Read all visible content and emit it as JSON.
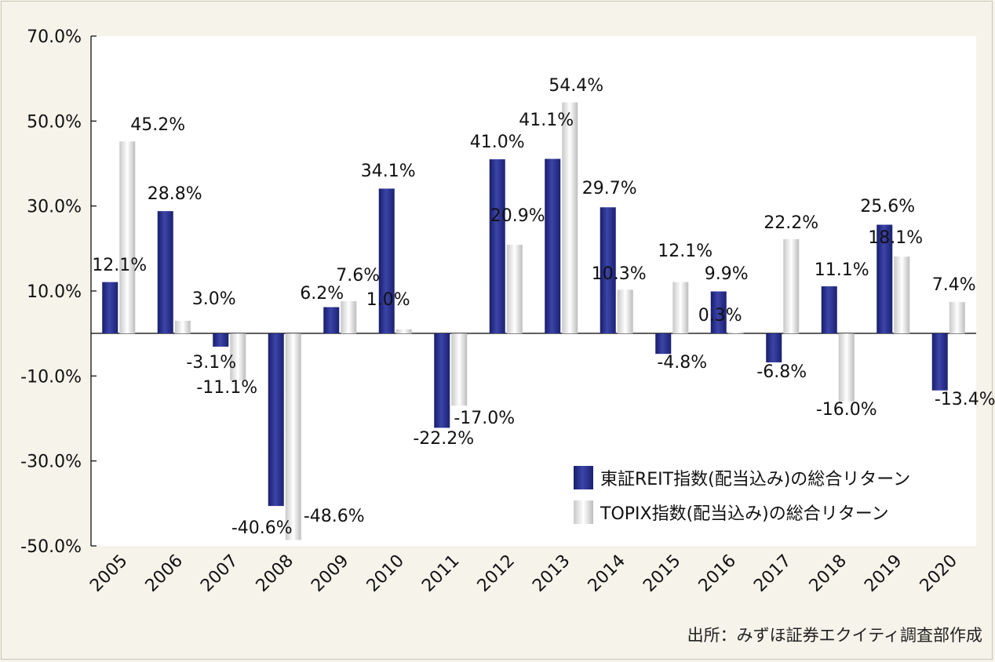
{
  "colors": {
    "background": "#f5f3ea",
    "plot_background": "#ffffff",
    "reit_bar": "#2e3592",
    "topix_bar": "#e4e4e4"
  },
  "chart_data": {
    "type": "bar",
    "title": "",
    "xlabel": "",
    "ylabel": "",
    "ylim": [
      -50.0,
      70.0
    ],
    "y_ticks": [
      70.0,
      50.0,
      30.0,
      10.0,
      -10.0,
      -30.0,
      -50.0
    ],
    "y_tick_labels": [
      "70.0%",
      "50.0%",
      "30.0%",
      "10.0%",
      "-10.0%",
      "-30.0%",
      "-50.0%"
    ],
    "categories": [
      "2005",
      "2006",
      "2007",
      "2008",
      "2009",
      "2010",
      "2011",
      "2012",
      "2013",
      "2014",
      "2015",
      "2016",
      "2017",
      "2018",
      "2019",
      "2020"
    ],
    "series": [
      {
        "name": "東証REIT指数(配当込み)の総合リターン",
        "values": [
          12.1,
          28.8,
          -3.1,
          -40.6,
          6.2,
          34.1,
          -22.2,
          41.0,
          41.1,
          29.7,
          -4.8,
          9.9,
          -6.8,
          11.1,
          25.6,
          -13.4
        ],
        "labels": [
          "12.1%",
          "28.8%",
          "-3.1%",
          "-40.6%",
          "6.2%",
          "34.1%",
          "-22.2%",
          "41.0%",
          "41.1%",
          "29.7%",
          "-4.8%",
          "9.9%",
          "-6.8%",
          "11.1%",
          "25.6%",
          "-13.4%"
        ]
      },
      {
        "name": "TOPIX指数(配当込み)の総合リターン",
        "values": [
          45.2,
          3.0,
          -11.1,
          -48.6,
          7.6,
          1.0,
          -17.0,
          20.9,
          54.4,
          10.3,
          12.1,
          0.3,
          22.2,
          -16.0,
          18.1,
          7.4
        ],
        "labels": [
          "45.2%",
          "3.0%",
          "-11.1%",
          "-48.6%",
          "7.6%",
          "1.0%",
          "-17.0%",
          "20.9%",
          "54.4%",
          "10.3%",
          "12.1%",
          "0.3%",
          "22.2%",
          "-16.0%",
          "18.1%",
          "7.4%"
        ]
      }
    ],
    "legend_position": "bottom-right",
    "grid": false
  },
  "source": "出所：みずほ証券エクイティ調査部作成"
}
